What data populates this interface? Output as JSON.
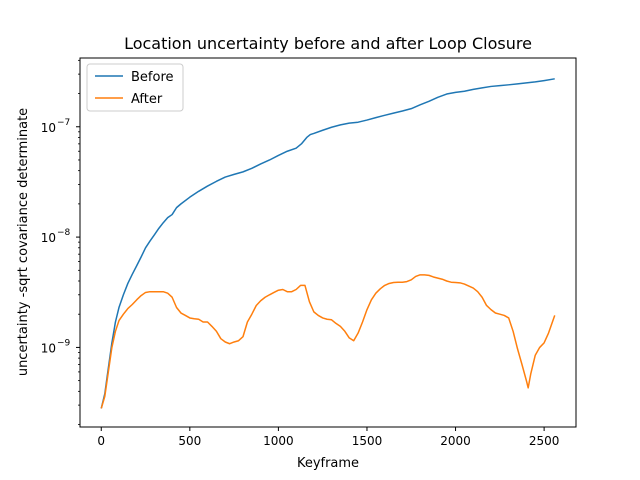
{
  "chart_data": {
    "type": "line",
    "title": "Location uncertainty before and after Loop Closure",
    "xlabel": "Keyframe",
    "ylabel": "uncertainty -sqrt covariance determinate",
    "xlim": [
      -120,
      2680
    ],
    "ylim": [
      1.9e-10,
      4.2e-07
    ],
    "yscale": "log",
    "grid": false,
    "legend_position": "top-left",
    "x_ticks": [
      0,
      500,
      1000,
      1500,
      2000,
      2500
    ],
    "x_tick_labels": [
      "0",
      "500",
      "1000",
      "1500",
      "2000",
      "2500"
    ],
    "y_ticks": [
      1e-09,
      1e-08,
      1e-07
    ],
    "y_tick_labels": [
      {
        "base": "10",
        "exp": "−9"
      },
      {
        "base": "10",
        "exp": "−8"
      },
      {
        "base": "10",
        "exp": "−7"
      }
    ],
    "series": [
      {
        "name": "Before",
        "color": "#1f77b4",
        "x": [
          0,
          20,
          40,
          60,
          80,
          100,
          125,
          150,
          175,
          200,
          225,
          250,
          275,
          300,
          325,
          350,
          375,
          400,
          425,
          450,
          500,
          550,
          600,
          650,
          700,
          750,
          800,
          850,
          900,
          950,
          1000,
          1050,
          1100,
          1130,
          1160,
          1180,
          1200,
          1250,
          1300,
          1350,
          1400,
          1450,
          1500,
          1550,
          1600,
          1650,
          1700,
          1750,
          1800,
          1850,
          1900,
          1950,
          2000,
          2050,
          2100,
          2150,
          2200,
          2250,
          2300,
          2350,
          2400,
          2450,
          2500,
          2560
        ],
        "y": [
          2.8e-10,
          3.8e-10,
          6.5e-10,
          1.1e-09,
          1.7e-09,
          2.3e-09,
          3e-09,
          3.8e-09,
          4.6e-09,
          5.5e-09,
          6.6e-09,
          8e-09,
          9.2e-09,
          1.05e-08,
          1.2e-08,
          1.35e-08,
          1.5e-08,
          1.6e-08,
          1.85e-08,
          2e-08,
          2.3e-08,
          2.6e-08,
          2.9e-08,
          3.2e-08,
          3.5e-08,
          3.7e-08,
          3.9e-08,
          4.2e-08,
          4.6e-08,
          5e-08,
          5.5e-08,
          6e-08,
          6.4e-08,
          7e-08,
          8e-08,
          8.5e-08,
          8.7e-08,
          9.3e-08,
          9.9e-08,
          1.04e-07,
          1.08e-07,
          1.1e-07,
          1.15e-07,
          1.21e-07,
          1.27e-07,
          1.33e-07,
          1.39e-07,
          1.46e-07,
          1.58e-07,
          1.7e-07,
          1.85e-07,
          1.98e-07,
          2.05e-07,
          2.1e-07,
          2.18e-07,
          2.25e-07,
          2.32e-07,
          2.36e-07,
          2.4e-07,
          2.45e-07,
          2.5e-07,
          2.55e-07,
          2.62e-07,
          2.72e-07
        ]
      },
      {
        "name": "After",
        "color": "#ff7f0e",
        "x": [
          0,
          20,
          40,
          60,
          80,
          100,
          125,
          150,
          175,
          200,
          225,
          250,
          275,
          300,
          325,
          350,
          375,
          400,
          425,
          450,
          475,
          500,
          525,
          550,
          575,
          600,
          625,
          650,
          675,
          700,
          725,
          750,
          775,
          800,
          825,
          850,
          875,
          900,
          925,
          950,
          975,
          1000,
          1025,
          1050,
          1075,
          1100,
          1125,
          1150,
          1175,
          1200,
          1225,
          1250,
          1275,
          1300,
          1325,
          1350,
          1375,
          1400,
          1425,
          1450,
          1475,
          1500,
          1525,
          1550,
          1575,
          1600,
          1625,
          1650,
          1675,
          1700,
          1725,
          1750,
          1775,
          1800,
          1825,
          1850,
          1875,
          1900,
          1925,
          1950,
          1975,
          2000,
          2025,
          2050,
          2075,
          2100,
          2125,
          2150,
          2175,
          2200,
          2225,
          2250,
          2275,
          2300,
          2325,
          2350,
          2375,
          2400,
          2410,
          2425,
          2450,
          2475,
          2500,
          2525,
          2560
        ],
        "y": [
          2.8e-10,
          3.6e-10,
          6e-10,
          1e-09,
          1.4e-09,
          1.75e-09,
          2e-09,
          2.25e-09,
          2.45e-09,
          2.7e-09,
          2.95e-09,
          3.15e-09,
          3.2e-09,
          3.2e-09,
          3.2e-09,
          3.2e-09,
          3.1e-09,
          2.85e-09,
          2.3e-09,
          2.05e-09,
          1.95e-09,
          1.85e-09,
          1.82e-09,
          1.8e-09,
          1.7e-09,
          1.7e-09,
          1.55e-09,
          1.4e-09,
          1.2e-09,
          1.12e-09,
          1.08e-09,
          1.12e-09,
          1.15e-09,
          1.25e-09,
          1.7e-09,
          2e-09,
          2.4e-09,
          2.65e-09,
          2.85e-09,
          3e-09,
          3.15e-09,
          3.3e-09,
          3.35e-09,
          3.2e-09,
          3.2e-09,
          3.35e-09,
          3.65e-09,
          3.65e-09,
          2.6e-09,
          2.1e-09,
          1.95e-09,
          1.85e-09,
          1.8e-09,
          1.78e-09,
          1.65e-09,
          1.55e-09,
          1.4e-09,
          1.22e-09,
          1.15e-09,
          1.35e-09,
          1.7e-09,
          2.2e-09,
          2.7e-09,
          3.1e-09,
          3.4e-09,
          3.65e-09,
          3.8e-09,
          3.88e-09,
          3.9e-09,
          3.9e-09,
          3.95e-09,
          4.1e-09,
          4.4e-09,
          4.55e-09,
          4.55e-09,
          4.5e-09,
          4.35e-09,
          4.25e-09,
          4.15e-09,
          4e-09,
          3.9e-09,
          3.88e-09,
          3.85e-09,
          3.75e-09,
          3.6e-09,
          3.45e-09,
          3.2e-09,
          2.85e-09,
          2.4e-09,
          2.2e-09,
          2.05e-09,
          2e-09,
          1.95e-09,
          1.85e-09,
          1.4e-09,
          9.7e-10,
          7e-10,
          5e-10,
          4.3e-10,
          5.8e-10,
          8.5e-10,
          1e-09,
          1.1e-09,
          1.35e-09,
          1.95e-09
        ]
      }
    ]
  }
}
